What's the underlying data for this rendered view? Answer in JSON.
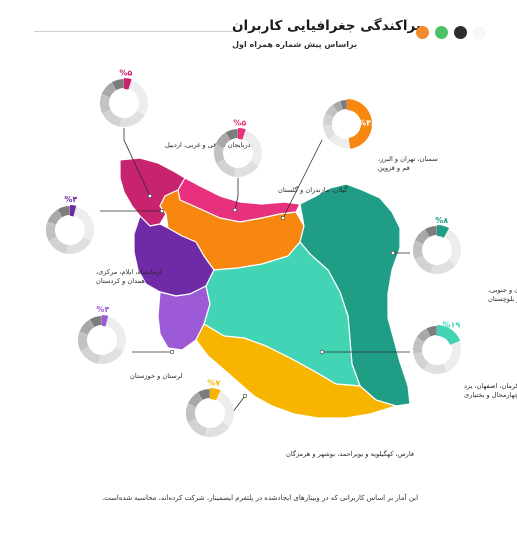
{
  "header": {
    "title": "پراکندگی جغرافیایی کاربران",
    "subtitle": "براساس پیش شماره همراه اول",
    "dots": [
      "#f7f7f7",
      "#2e2e2e",
      "#4cc26b",
      "#f28a2e"
    ]
  },
  "footnote": "این آمار بر اساس کاربرانی که در وبینارهای ایجادشده در پلتفرم ایسمینار، شرکت کرده‌اند، محاسبه شده‌است.",
  "chart_data": {
    "type": "pie",
    "title": "پراکندگی جغرافیایی کاربران",
    "subtitle": "براساس پیش شماره همراه اول",
    "unit": "%",
    "regions": [
      {
        "id": "az",
        "label": "آذربایجان شرقی و غربی، اردبیل",
        "value": 5,
        "value_label": "%۵",
        "color": "#c8236e",
        "label_lines": [
          "آذربایجان شرقی و غربی، اردبیل"
        ]
      },
      {
        "id": "gil",
        "label": "گیلان، مازندران و گلستان",
        "value": 5,
        "value_label": "%۵",
        "color": "#e8317e",
        "label_lines": [
          "گیلان، مازندران و گلستان"
        ]
      },
      {
        "id": "teh",
        "label": "سمنان، تهران و البرز، قم و قزوین",
        "value": 48,
        "value_label": "%۴۸",
        "color": "#f7870f",
        "label_lines": [
          "سمنان، تهران و البرز،",
          "قم و قزوین"
        ]
      },
      {
        "id": "ker",
        "label": "کرمانشاه، ایلام، مرکزی، همدان و کردستان",
        "value": 4,
        "value_label": "%۴",
        "color": "#6f2aa6",
        "label_lines": [
          "کرمانشاه، ایلام، مرکزی،",
          "همدان و کردستان"
        ]
      },
      {
        "id": "khr",
        "label": "خراسان‌های شمالی، رضوی و جنوبی، سیستان و بلوچستان",
        "value": 8,
        "value_label": "%۸",
        "color": "#1f9e85",
        "label_lines": [
          "خراسان‌های شمالی، رضوی و جنوبی،",
          "سیستان و بلوچستان"
        ]
      },
      {
        "id": "lor",
        "label": "لرستان و خوزستان",
        "value": 4,
        "value_label": "%۴",
        "color": "#9c5ad6",
        "label_lines": [
          "لرستان و خوزستان"
        ]
      },
      {
        "id": "isf",
        "label": "کرمان، اصفهان، یزد و چهارمحال و بختیاری",
        "value": 19,
        "value_label": "%۱۹",
        "color": "#42d4b4",
        "label_lines": [
          "کرمان، اصفهان، یزد",
          "و چهارمحال و بختیاری"
        ]
      },
      {
        "id": "far",
        "label": "فارس، کهگیلویه و بویراحمد، بوشهر و هرمزگان",
        "value": 7,
        "value_label": "%۷",
        "color": "#f7b500",
        "label_lines": [
          "فارس، کهگیلویه و بویراحمد، بوشهر و هرمزگان"
        ]
      }
    ],
    "donut_remainder_colors": [
      "#ededed",
      "#e0e0e0",
      "#d2d2d2",
      "#c2c2c2",
      "#a8a8a8",
      "#7d7d7d"
    ]
  }
}
